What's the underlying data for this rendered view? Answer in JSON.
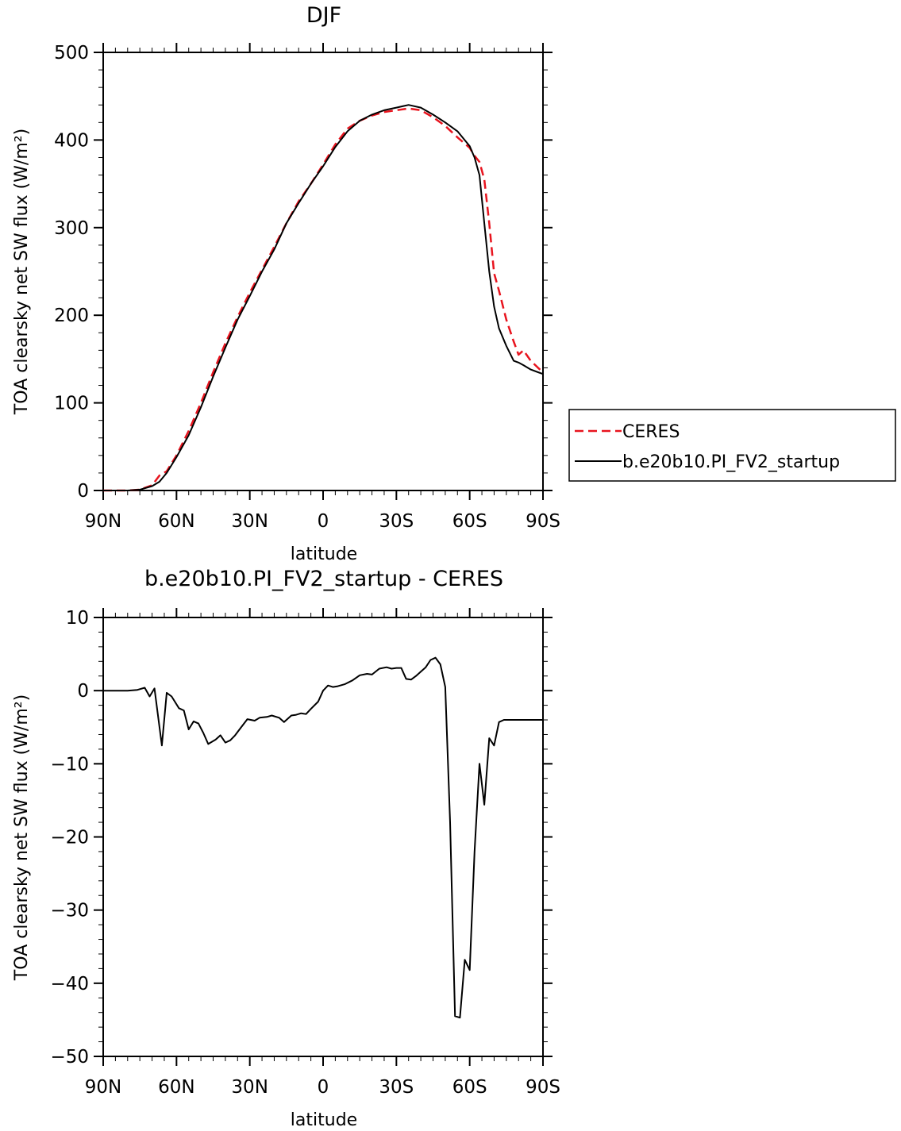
{
  "chart_data": [
    {
      "type": "line",
      "title": "DJF",
      "xlabel": "latitude",
      "ylabel": "TOA clearsky net SW flux (W/m²)",
      "ylim": [
        0,
        500
      ],
      "yticks": [
        0,
        100,
        200,
        300,
        400,
        500
      ],
      "xticks": [
        {
          "value": -90,
          "label": "90N"
        },
        {
          "value": -60,
          "label": "60N"
        },
        {
          "value": -30,
          "label": "30N"
        },
        {
          "value": 0,
          "label": "0"
        },
        {
          "value": 30,
          "label": "30S"
        },
        {
          "value": 60,
          "label": "60S"
        },
        {
          "value": 90,
          "label": "90S"
        }
      ],
      "legend_position": "right",
      "x": [
        -90,
        -80,
        -75,
        -70,
        -67,
        -64,
        -60,
        -55,
        -50,
        -45,
        -40,
        -35,
        -30,
        -25,
        -20,
        -15,
        -10,
        -5,
        0,
        5,
        10,
        15,
        20,
        25,
        30,
        35,
        40,
        45,
        50,
        55,
        60,
        62,
        64,
        66,
        68,
        70,
        72,
        75,
        78,
        80,
        82,
        85,
        88,
        90
      ],
      "series": [
        {
          "name": "CERES",
          "color": "#e8141e",
          "dash": "dashed",
          "values": [
            0,
            0,
            1,
            6,
            17,
            22,
            40,
            68,
            100,
            135,
            168,
            198,
            226,
            252,
            278,
            305,
            330,
            350,
            372,
            395,
            413,
            422,
            428,
            432,
            434,
            436,
            434,
            426,
            416,
            403,
            391,
            382,
            375,
            355,
            305,
            248,
            228,
            195,
            170,
            155,
            160,
            148,
            140,
            135
          ]
        },
        {
          "name": "b.e20b10.PI_FV2_startup",
          "color": "#000000",
          "dash": "solid",
          "values": [
            0,
            0,
            1,
            5,
            10,
            20,
            38,
            63,
            95,
            130,
            163,
            195,
            222,
            250,
            275,
            305,
            328,
            350,
            370,
            392,
            410,
            422,
            429,
            434,
            437,
            440,
            437,
            429,
            420,
            410,
            393,
            380,
            360,
            305,
            250,
            210,
            185,
            165,
            148,
            146,
            143,
            138,
            135,
            133
          ]
        }
      ]
    },
    {
      "type": "line",
      "title": "b.e20b10.PI_FV2_startup - CERES",
      "xlabel": "latitude",
      "ylabel": "TOA clearsky net SW flux (W/m²)",
      "ylim": [
        -50,
        10
      ],
      "yticks": [
        -50,
        -40,
        -30,
        -20,
        -10,
        0,
        10
      ],
      "xticks": [
        {
          "value": -90,
          "label": "90N"
        },
        {
          "value": -60,
          "label": "60N"
        },
        {
          "value": -30,
          "label": "30N"
        },
        {
          "value": 0,
          "label": "0"
        },
        {
          "value": 30,
          "label": "30S"
        },
        {
          "value": 60,
          "label": "60S"
        },
        {
          "value": 90,
          "label": "90S"
        }
      ],
      "series": [
        {
          "color": "#000000",
          "x": [
            -90,
            -85,
            -80,
            -76,
            -73,
            -71,
            -69,
            -66,
            -64,
            -62,
            -59,
            -57,
            -55,
            -53,
            -51,
            -49,
            -47,
            -44,
            -42,
            -40,
            -38,
            -36,
            -34,
            -31,
            -28,
            -26,
            -23,
            -21,
            -18,
            -16,
            -13,
            -11,
            -9,
            -7,
            -5,
            -2,
            0,
            2,
            4,
            6,
            9,
            12,
            15,
            18,
            20,
            23,
            26,
            28,
            30,
            32,
            34,
            36,
            38,
            40,
            42,
            44,
            46,
            48,
            50,
            52,
            54,
            56,
            58,
            60,
            62,
            64,
            66,
            68,
            70,
            72,
            74,
            76,
            78,
            80,
            82,
            84,
            86,
            88,
            90
          ],
          "values": [
            0,
            0,
            0,
            0.1,
            0.4,
            -0.8,
            0.3,
            -7.5,
            -0.3,
            -0.8,
            -2.4,
            -2.7,
            -5.3,
            -4.2,
            -4.5,
            -5.8,
            -7.3,
            -6.7,
            -6.1,
            -7.1,
            -6.8,
            -6.1,
            -5.2,
            -3.9,
            -4.1,
            -3.7,
            -3.6,
            -3.4,
            -3.7,
            -4.3,
            -3.4,
            -3.3,
            -3.1,
            -3.2,
            -2.5,
            -1.5,
            0,
            0.7,
            0.5,
            0.6,
            0.9,
            1.4,
            2.1,
            2.3,
            2.2,
            3.0,
            3.2,
            3.0,
            3.1,
            3.1,
            1.6,
            1.5,
            2.0,
            2.6,
            3.2,
            4.2,
            4.5,
            3.6,
            0.5,
            -18,
            -44.5,
            -44.7,
            -36.8,
            -38.2,
            -22,
            -10,
            -15.6,
            -6.5,
            -7.5,
            -4.3,
            -4,
            -4,
            -4,
            -4,
            -4,
            -4,
            -4,
            -4,
            -4
          ]
        }
      ]
    }
  ],
  "legend": {
    "entries": [
      "CERES",
      "b.e20b10.PI_FV2_startup"
    ]
  }
}
